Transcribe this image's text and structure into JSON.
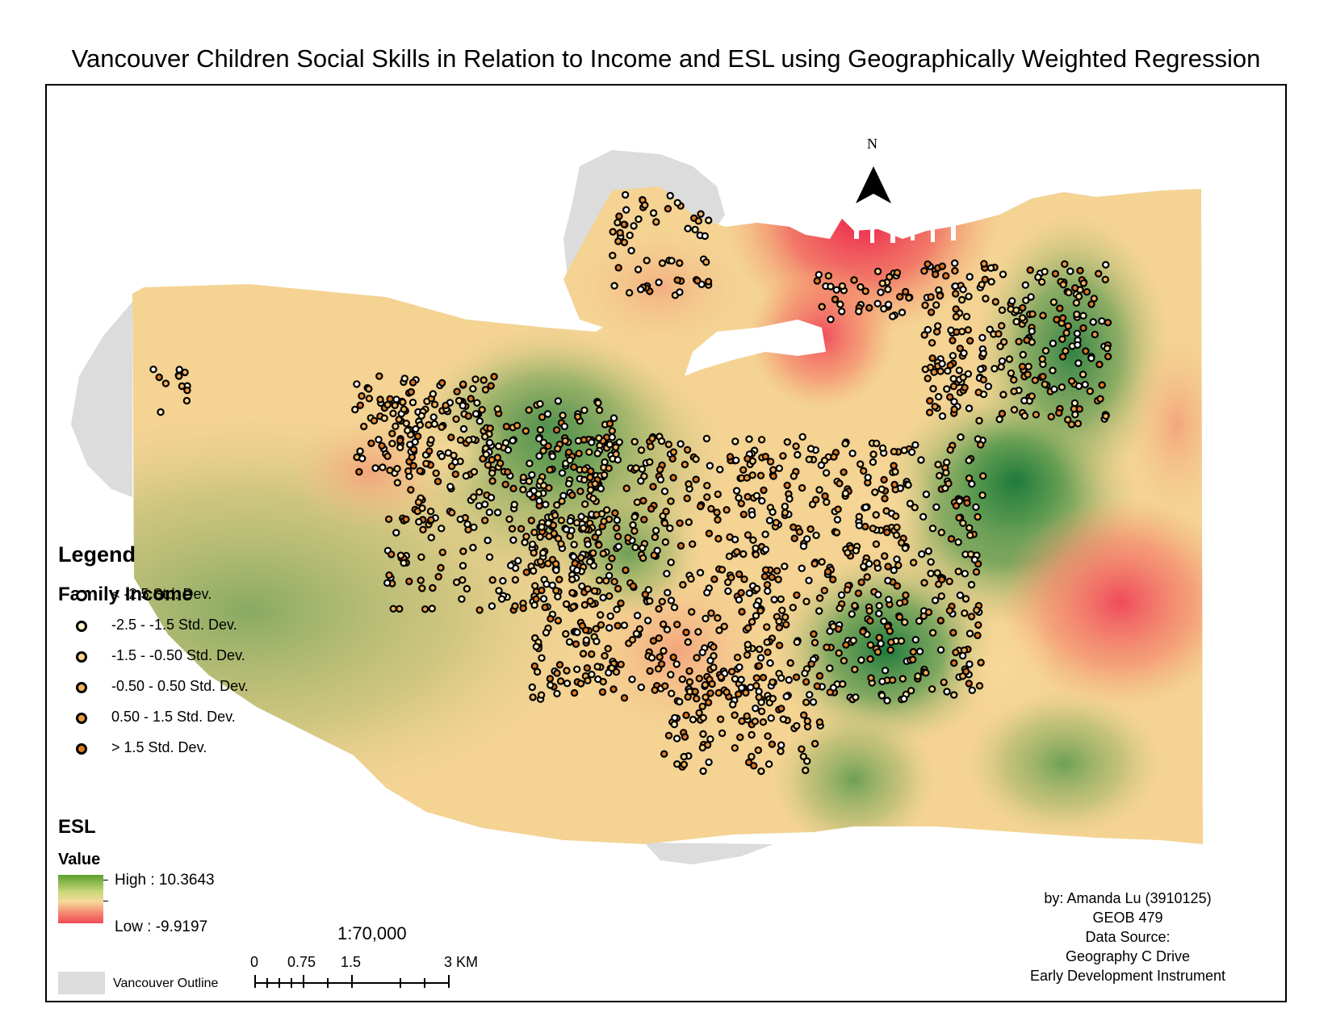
{
  "title": "Vancouver Children Social Skills in Relation to Income and ESL using Geographically Weighted Regression",
  "north": "N",
  "legend": {
    "heading": "Legend",
    "income_heading": "Family Income",
    "income_classes": [
      {
        "label": "< -2.5 Std. Dev.",
        "fill": "#ffffff"
      },
      {
        "label": "-2.5 - -1.5 Std. Dev.",
        "fill": "#fff3c4"
      },
      {
        "label": "-1.5 - -0.50 Std. Dev.",
        "fill": "#fbd78a"
      },
      {
        "label": "-0.50 - 0.50 Std. Dev.",
        "fill": "#f5b45a"
      },
      {
        "label": "0.50 - 1.5 Std. Dev.",
        "fill": "#ee9a3c"
      },
      {
        "label": "> 1.5 Std. Dev.",
        "fill": "#e07a22"
      }
    ],
    "esl_heading": "ESL",
    "value_heading": "Value",
    "esl_high": "High : 10.3643",
    "esl_low": "Low : -9.9197",
    "outline_label": "Vancouver Outline"
  },
  "scale": {
    "ratio": "1:70,000",
    "labels": [
      "0",
      "0.75",
      "1.5",
      "3 KM"
    ]
  },
  "credits": [
    "by: Amanda Lu (3910125)",
    "GEOB 479",
    "Data Source:",
    "Geography C Drive",
    "Early Development Instrument"
  ],
  "colors": {
    "high_esl": "#1e7a3c",
    "mid_esl": "#f6dc9c",
    "low_esl": "#ec1d4a",
    "outline": "#dcdcdc"
  }
}
